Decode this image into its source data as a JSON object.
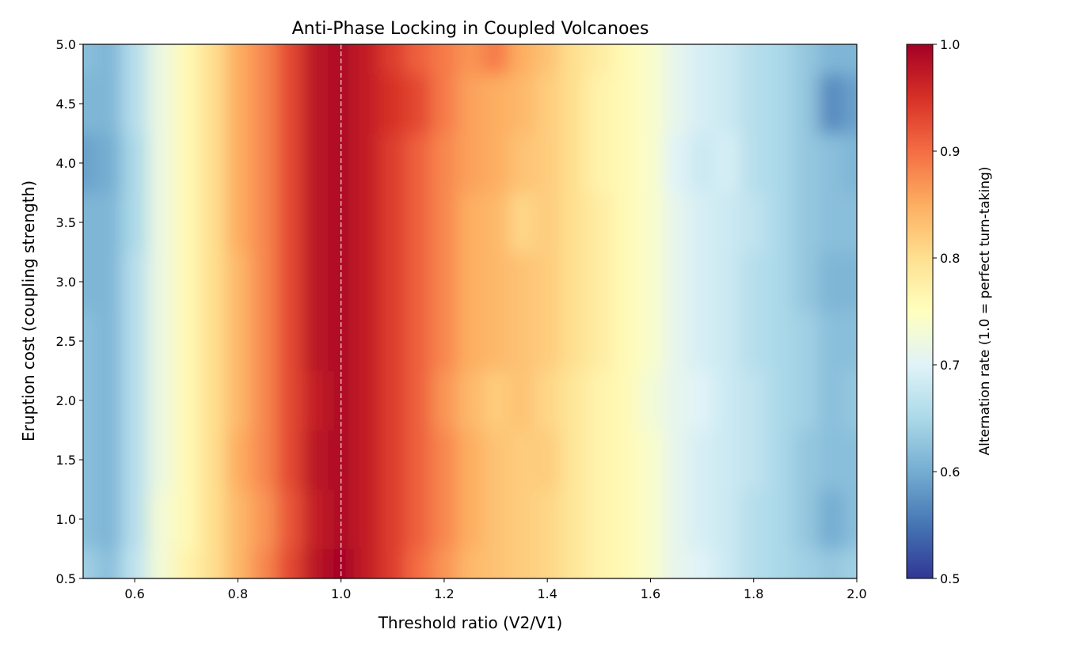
{
  "chart_data": {
    "type": "heatmap",
    "title": "Anti-Phase Locking in Coupled Volcanoes",
    "xlabel": "Threshold ratio (V2/V1)",
    "ylabel": "Eruption cost (coupling strength)",
    "xlim": [
      0.5,
      2.0
    ],
    "ylim": [
      0.5,
      5.0
    ],
    "xticks": [
      "0.6",
      "0.8",
      "1.0",
      "1.2",
      "1.4",
      "1.6",
      "1.8",
      "2.0"
    ],
    "yticks": [
      "0.5",
      "1.0",
      "1.5",
      "2.0",
      "2.5",
      "3.0",
      "3.5",
      "4.0",
      "4.5",
      "5.0"
    ],
    "x": [
      0.5,
      0.55,
      0.6,
      0.65,
      0.7,
      0.75,
      0.8,
      0.85,
      0.9,
      0.95,
      1.0,
      1.05,
      1.1,
      1.15,
      1.2,
      1.25,
      1.3,
      1.35,
      1.4,
      1.45,
      1.5,
      1.55,
      1.6,
      1.65,
      1.7,
      1.75,
      1.8,
      1.85,
      1.9,
      1.95,
      2.0
    ],
    "y": [
      0.5,
      1.0,
      1.5,
      2.0,
      2.5,
      3.0,
      3.5,
      4.0,
      4.5,
      5.0
    ],
    "values": [
      [
        0.64,
        0.62,
        0.67,
        0.73,
        0.77,
        0.8,
        0.84,
        0.88,
        0.93,
        0.98,
        1.0,
        0.97,
        0.94,
        0.9,
        0.87,
        0.84,
        0.83,
        0.82,
        0.81,
        0.79,
        0.77,
        0.76,
        0.74,
        0.71,
        0.7,
        0.68,
        0.66,
        0.65,
        0.64,
        0.63,
        0.64
      ],
      [
        0.62,
        0.61,
        0.66,
        0.73,
        0.76,
        0.8,
        0.84,
        0.87,
        0.92,
        0.97,
        0.99,
        0.97,
        0.94,
        0.91,
        0.88,
        0.85,
        0.83,
        0.82,
        0.81,
        0.79,
        0.77,
        0.76,
        0.74,
        0.71,
        0.69,
        0.68,
        0.66,
        0.65,
        0.63,
        0.6,
        0.62
      ],
      [
        0.62,
        0.61,
        0.66,
        0.72,
        0.76,
        0.8,
        0.85,
        0.88,
        0.93,
        0.98,
        0.99,
        0.97,
        0.94,
        0.91,
        0.88,
        0.85,
        0.83,
        0.82,
        0.82,
        0.79,
        0.77,
        0.76,
        0.74,
        0.71,
        0.69,
        0.68,
        0.67,
        0.65,
        0.63,
        0.62,
        0.62
      ],
      [
        0.62,
        0.61,
        0.66,
        0.72,
        0.76,
        0.8,
        0.84,
        0.88,
        0.93,
        0.97,
        0.99,
        0.97,
        0.94,
        0.91,
        0.87,
        0.84,
        0.82,
        0.83,
        0.81,
        0.79,
        0.77,
        0.76,
        0.73,
        0.71,
        0.7,
        0.68,
        0.67,
        0.65,
        0.64,
        0.62,
        0.63
      ],
      [
        0.62,
        0.61,
        0.66,
        0.72,
        0.76,
        0.8,
        0.84,
        0.88,
        0.93,
        0.98,
        0.99,
        0.97,
        0.94,
        0.91,
        0.88,
        0.85,
        0.84,
        0.83,
        0.82,
        0.8,
        0.78,
        0.76,
        0.74,
        0.71,
        0.69,
        0.68,
        0.66,
        0.65,
        0.64,
        0.62,
        0.62
      ],
      [
        0.61,
        0.61,
        0.66,
        0.72,
        0.76,
        0.8,
        0.84,
        0.88,
        0.93,
        0.98,
        0.99,
        0.97,
        0.94,
        0.91,
        0.88,
        0.85,
        0.84,
        0.83,
        0.82,
        0.8,
        0.78,
        0.76,
        0.74,
        0.71,
        0.69,
        0.68,
        0.66,
        0.65,
        0.63,
        0.61,
        0.61
      ],
      [
        0.61,
        0.61,
        0.65,
        0.72,
        0.76,
        0.8,
        0.85,
        0.88,
        0.93,
        0.98,
        0.99,
        0.97,
        0.94,
        0.91,
        0.88,
        0.85,
        0.84,
        0.81,
        0.82,
        0.8,
        0.78,
        0.76,
        0.74,
        0.71,
        0.69,
        0.68,
        0.67,
        0.65,
        0.63,
        0.62,
        0.62
      ],
      [
        0.59,
        0.6,
        0.65,
        0.72,
        0.76,
        0.8,
        0.85,
        0.88,
        0.93,
        0.98,
        0.99,
        0.97,
        0.94,
        0.91,
        0.88,
        0.86,
        0.85,
        0.83,
        0.82,
        0.8,
        0.77,
        0.76,
        0.74,
        0.7,
        0.68,
        0.69,
        0.66,
        0.65,
        0.63,
        0.62,
        0.61
      ],
      [
        0.61,
        0.61,
        0.66,
        0.72,
        0.76,
        0.8,
        0.85,
        0.88,
        0.93,
        0.98,
        0.99,
        0.97,
        0.95,
        0.93,
        0.89,
        0.86,
        0.85,
        0.84,
        0.82,
        0.8,
        0.77,
        0.76,
        0.74,
        0.71,
        0.69,
        0.68,
        0.66,
        0.65,
        0.63,
        0.57,
        0.59
      ],
      [
        0.62,
        0.61,
        0.66,
        0.72,
        0.76,
        0.8,
        0.85,
        0.88,
        0.93,
        0.98,
        0.99,
        0.97,
        0.94,
        0.91,
        0.89,
        0.87,
        0.89,
        0.85,
        0.83,
        0.8,
        0.78,
        0.76,
        0.74,
        0.71,
        0.69,
        0.68,
        0.66,
        0.65,
        0.63,
        0.61,
        0.61
      ]
    ],
    "reference_line_x": 1.0,
    "colormap": "RdYlBu_r",
    "colorbar": {
      "label": "Alternation rate (1.0 = perfect turn-taking)",
      "range": [
        0.5,
        1.0
      ],
      "ticks": [
        "0.5",
        "0.6",
        "0.7",
        "0.8",
        "0.9",
        "1.0"
      ]
    },
    "grid": false,
    "colors": [
      "#313695",
      "#4575b4",
      "#74add1",
      "#abd9e9",
      "#e0f3f8",
      "#ffffbf",
      "#fee090",
      "#fdae61",
      "#f46d43",
      "#d73027",
      "#a50026"
    ]
  }
}
